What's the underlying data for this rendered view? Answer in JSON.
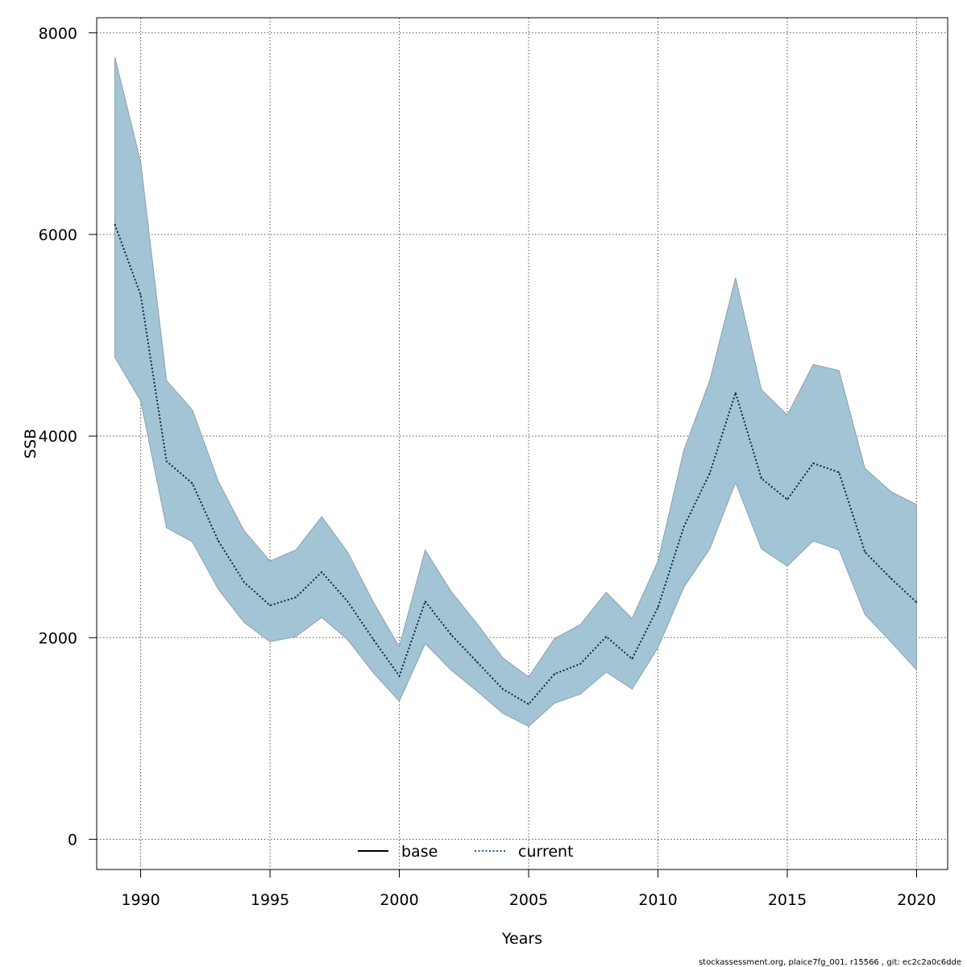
{
  "chart_data": {
    "type": "area",
    "xlabel": "Years",
    "ylabel": "SSB",
    "xlim": [
      1988.3,
      2021.2
    ],
    "ylim": [
      -300,
      8150
    ],
    "x_ticks": [
      1990,
      1995,
      2000,
      2005,
      2010,
      2015,
      2020
    ],
    "y_ticks": [
      0,
      2000,
      4000,
      6000,
      8000
    ],
    "grid": true,
    "legend_position": "bottom-center",
    "legend": [
      {
        "name": "base",
        "style": "solid",
        "color": "#000000"
      },
      {
        "name": "current",
        "style": "dotted",
        "color": "#1f5f8b"
      }
    ],
    "x": [
      1989,
      1990,
      1991,
      1992,
      1993,
      1994,
      1995,
      1996,
      1997,
      1998,
      1999,
      2000,
      2001,
      2002,
      2003,
      2004,
      2005,
      2006,
      2007,
      2008,
      2009,
      2010,
      2011,
      2012,
      2013,
      2014,
      2015,
      2016,
      2017,
      2018,
      2019,
      2020
    ],
    "series": [
      {
        "name": "current",
        "values": [
          6100,
          5400,
          3750,
          3530,
          2960,
          2550,
          2320,
          2400,
          2650,
          2360,
          1980,
          1620,
          2360,
          2030,
          1760,
          1490,
          1340,
          1640,
          1740,
          2010,
          1790,
          2300,
          3100,
          3630,
          4430,
          3580,
          3370,
          3730,
          3640,
          2850,
          2590,
          2350
        ],
        "lower": [
          4780,
          4350,
          3090,
          2950,
          2480,
          2150,
          1960,
          2010,
          2200,
          1980,
          1650,
          1370,
          1940,
          1680,
          1470,
          1250,
          1120,
          1350,
          1440,
          1660,
          1490,
          1900,
          2500,
          2880,
          3540,
          2880,
          2710,
          2960,
          2870,
          2230,
          1960,
          1680
        ],
        "upper": [
          7760,
          6720,
          4550,
          4260,
          3550,
          3060,
          2760,
          2870,
          3200,
          2850,
          2350,
          1910,
          2870,
          2460,
          2140,
          1800,
          1610,
          1990,
          2130,
          2450,
          2190,
          2760,
          3860,
          4550,
          5570,
          4460,
          4210,
          4710,
          4650,
          3680,
          3450,
          3320
        ]
      }
    ],
    "band_color": "#a3c4d5",
    "band_edge_color": "#8aa1ad"
  },
  "footer": "stockassessment.org, plaice7fg_001, r15566 , git: ec2c2a0c6dde"
}
